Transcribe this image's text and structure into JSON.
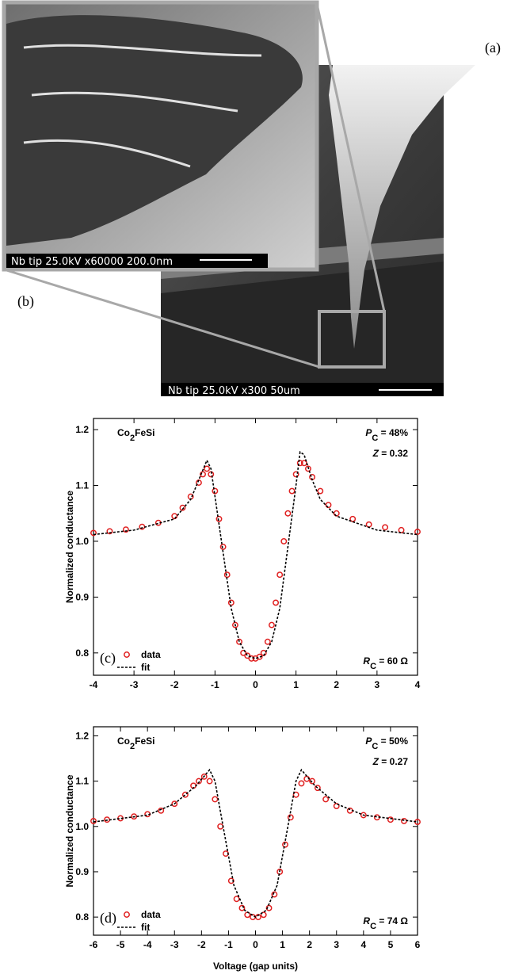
{
  "figure": {
    "panel_a": "(a)",
    "panel_b": "(b)",
    "caption_inset": "Nb tip  25.0kV  x60000  200.0nm",
    "caption_main": "Nb tip  25.0kV  x300  50um"
  },
  "chart_data": [
    {
      "type": "scatter-fit",
      "panel": "(c)",
      "y_label": "Normalized conductance",
      "xlim": [
        -4,
        4
      ],
      "xticks": [
        -4,
        -3,
        -2,
        -1,
        0,
        1,
        2,
        3,
        4
      ],
      "ylim": [
        0.76,
        1.22
      ],
      "yticks": [
        0.8,
        0.9,
        {
          "value": 1,
          "label": "1.0"
        },
        1.1,
        1.2
      ],
      "annotations": {
        "material": [
          {
            "t": "Co"
          },
          {
            "t": "2",
            "sub": true
          },
          {
            "t": "FeSi"
          }
        ],
        "polarization": [
          {
            "t": "P",
            "italic": true
          },
          {
            "t": "C",
            "sub": true
          },
          {
            "t": " = 48%"
          }
        ],
        "barrier": [
          {
            "t": "Z",
            "italic": true
          },
          {
            "t": " = 0.32"
          }
        ],
        "resistance": [
          {
            "t": "R",
            "italic": true
          },
          {
            "t": "C",
            "sub": true
          },
          {
            "t": " = 60 Ω"
          }
        ]
      },
      "series": [
        {
          "name": "data",
          "color": "#e02020",
          "x": [
            -4,
            -3.6,
            -3.2,
            -2.8,
            -2.4,
            -2.0,
            -1.8,
            -1.6,
            -1.4,
            -1.3,
            -1.2,
            -1.1,
            -1.0,
            -0.9,
            -0.8,
            -0.7,
            -0.6,
            -0.5,
            -0.4,
            -0.3,
            -0.2,
            -0.1,
            0,
            0.1,
            0.2,
            0.3,
            0.4,
            0.5,
            0.6,
            0.7,
            0.8,
            0.9,
            1.0,
            1.1,
            1.2,
            1.3,
            1.4,
            1.6,
            1.8,
            2.0,
            2.4,
            2.8,
            3.2,
            3.6,
            4.0
          ],
          "values": [
            1.015,
            1.018,
            1.021,
            1.026,
            1.033,
            1.045,
            1.06,
            1.08,
            1.105,
            1.12,
            1.13,
            1.12,
            1.09,
            1.04,
            0.99,
            0.94,
            0.89,
            0.85,
            0.82,
            0.8,
            0.795,
            0.79,
            0.79,
            0.793,
            0.8,
            0.82,
            0.85,
            0.89,
            0.94,
            1.0,
            1.05,
            1.09,
            1.12,
            1.14,
            1.14,
            1.13,
            1.115,
            1.09,
            1.065,
            1.05,
            1.04,
            1.03,
            1.025,
            1.02,
            1.017
          ]
        },
        {
          "name": "fit",
          "color": "#000000",
          "x": [
            -4,
            -3,
            -2,
            -1.6,
            -1.4,
            -1.2,
            -1.1,
            -1.0,
            -0.8,
            -0.6,
            -0.4,
            -0.2,
            0,
            0.2,
            0.4,
            0.6,
            0.8,
            1.0,
            1.1,
            1.2,
            1.4,
            1.6,
            2,
            3,
            4
          ],
          "values": [
            1.012,
            1.02,
            1.04,
            1.075,
            1.11,
            1.145,
            1.13,
            1.08,
            0.98,
            0.88,
            0.82,
            0.795,
            0.79,
            0.795,
            0.82,
            0.88,
            0.99,
            1.1,
            1.16,
            1.155,
            1.11,
            1.075,
            1.045,
            1.02,
            1.012
          ]
        }
      ]
    },
    {
      "type": "scatter-fit",
      "panel": "(d)",
      "y_label": "Normalized conductance",
      "x_label": "Voltage (gap units)",
      "xlim": [
        -6,
        6
      ],
      "xticks": [
        -6,
        -5,
        -4,
        -3,
        -2,
        -1,
        0,
        1,
        2,
        3,
        4,
        5,
        6
      ],
      "ylim": [
        0.76,
        1.22
      ],
      "yticks": [
        0.8,
        0.9,
        {
          "value": 1,
          "label": "1.0"
        },
        1.1,
        1.2
      ],
      "annotations": {
        "material": [
          {
            "t": "Co"
          },
          {
            "t": "2",
            "sub": true
          },
          {
            "t": "FeSi"
          }
        ],
        "polarization": [
          {
            "t": "P",
            "italic": true
          },
          {
            "t": "C",
            "sub": true
          },
          {
            "t": " = 50%"
          }
        ],
        "barrier": [
          {
            "t": "Z",
            "italic": true
          },
          {
            "t": " = 0.27"
          }
        ],
        "resistance": [
          {
            "t": "R",
            "italic": true
          },
          {
            "t": "C",
            "sub": true
          },
          {
            "t": " = 74 Ω"
          }
        ]
      },
      "series": [
        {
          "name": "data",
          "color": "#e02020",
          "x": [
            -6,
            -5.5,
            -5,
            -4.5,
            -4,
            -3.5,
            -3,
            -2.6,
            -2.3,
            -2.1,
            -1.9,
            -1.7,
            -1.5,
            -1.3,
            -1.1,
            -0.9,
            -0.7,
            -0.5,
            -0.3,
            -0.1,
            0.1,
            0.3,
            0.5,
            0.7,
            0.9,
            1.1,
            1.3,
            1.5,
            1.7,
            1.9,
            2.1,
            2.3,
            2.6,
            3,
            3.5,
            4,
            4.5,
            5,
            5.5,
            6
          ],
          "values": [
            1.012,
            1.015,
            1.018,
            1.022,
            1.027,
            1.035,
            1.05,
            1.07,
            1.09,
            1.1,
            1.11,
            1.1,
            1.06,
            1.0,
            0.94,
            0.88,
            0.84,
            0.82,
            0.805,
            0.8,
            0.8,
            0.805,
            0.82,
            0.85,
            0.9,
            0.96,
            1.02,
            1.07,
            1.095,
            1.105,
            1.1,
            1.085,
            1.06,
            1.045,
            1.035,
            1.025,
            1.02,
            1.015,
            1.012,
            1.01
          ]
        },
        {
          "name": "fit",
          "color": "#000000",
          "x": [
            -6,
            -4,
            -3,
            -2.2,
            -1.7,
            -1.5,
            -1.2,
            -0.8,
            -0.4,
            0,
            0.4,
            0.8,
            1.2,
            1.5,
            1.7,
            2.2,
            3,
            4,
            6
          ],
          "values": [
            1.01,
            1.025,
            1.05,
            1.09,
            1.125,
            1.1,
            1.0,
            0.87,
            0.815,
            0.8,
            0.815,
            0.87,
            1.0,
            1.1,
            1.125,
            1.09,
            1.05,
            1.025,
            1.01
          ]
        }
      ]
    }
  ]
}
